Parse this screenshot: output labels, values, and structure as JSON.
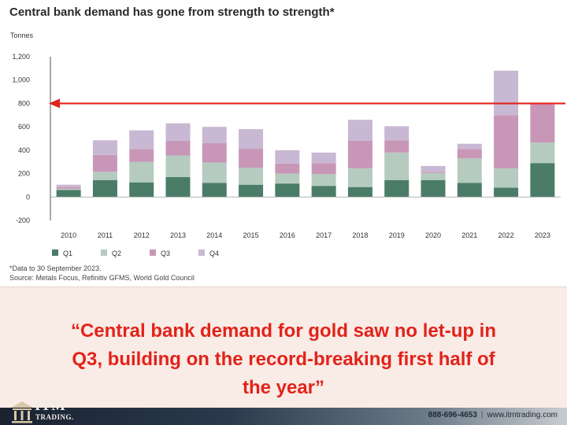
{
  "title": "Central bank demand has gone from strength to strength*",
  "unit_label": "Tonnes",
  "footnote": {
    "line1": "*Data to 30 September 2023.",
    "line2": "Source: Metals Focus, Refinitiv GFMS, World Gold Council"
  },
  "quote": {
    "line1": "“Central bank demand for gold saw no let-up in",
    "line2": "Q3, building on the record-breaking first half of",
    "line3": "the year”"
  },
  "footer": {
    "logo_word": "ITM",
    "logo_sub": "TRADING.",
    "phone": "888-696-4653",
    "separator": "|",
    "website": "www.itmtrading.com"
  },
  "colors": {
    "q1": "#4a7c68",
    "q2": "#b5cbc0",
    "q3": "#c897b7",
    "q4": "#c8b8d3",
    "annotation": "#e2231a",
    "quote": "#e2231a"
  },
  "chart_data": {
    "type": "bar",
    "stacked": true,
    "categories": [
      "2010",
      "2011",
      "2012",
      "2013",
      "2014",
      "2015",
      "2016",
      "2017",
      "2018",
      "2019",
      "2020",
      "2021",
      "2022",
      "2023"
    ],
    "series": [
      {
        "name": "Q1",
        "values": [
          60,
          145,
          125,
          170,
          120,
          105,
          115,
          95,
          85,
          145,
          145,
          120,
          80,
          290
        ]
      },
      {
        "name": "Q2",
        "values": [
          10,
          70,
          175,
          185,
          175,
          145,
          85,
          100,
          160,
          235,
          60,
          210,
          165,
          175
        ]
      },
      {
        "name": "Q3",
        "values": [
          15,
          145,
          110,
          125,
          165,
          165,
          85,
          95,
          235,
          105,
          10,
          80,
          455,
          335
        ]
      },
      {
        "name": "Q4",
        "values": [
          20,
          125,
          160,
          150,
          140,
          165,
          115,
          90,
          180,
          120,
          50,
          45,
          380,
          0
        ]
      }
    ],
    "ylim": [
      -200,
      1200
    ],
    "yticks": [
      -200,
      0,
      200,
      400,
      600,
      800,
      1000,
      1200
    ],
    "ytick_labels": [
      "-200",
      "0",
      "200",
      "400",
      "600",
      "800",
      "1,000",
      "1,200"
    ],
    "grid": false,
    "legend": "bottom-left",
    "annotation": {
      "type": "arrow",
      "value": 800
    }
  }
}
